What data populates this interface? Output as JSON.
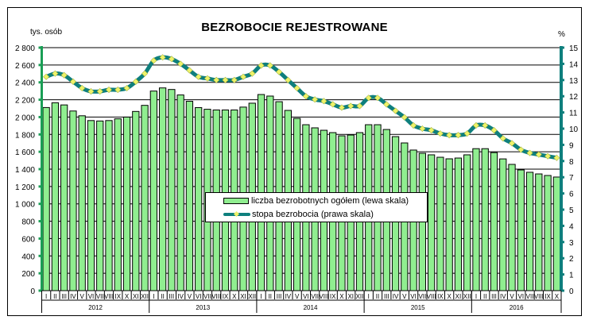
{
  "chart_data": {
    "type": "bar+line",
    "title": "BEZROBOCIE REJESTROWANE",
    "left_axis": {
      "label": "tys. osób",
      "ticks": [
        "0",
        "200",
        "400",
        "600",
        "800",
        "1 000",
        "1 200",
        "1 400",
        "1 600",
        "1 800",
        "2 000",
        "2 200",
        "2 400",
        "2 600",
        "2 800"
      ],
      "range": [
        0,
        2800
      ]
    },
    "right_axis": {
      "label": "%",
      "ticks": [
        "0",
        "1",
        "2",
        "3",
        "4",
        "5",
        "6",
        "7",
        "8",
        "9",
        "10",
        "11",
        "12",
        "13",
        "14",
        "15"
      ],
      "range": [
        0,
        15
      ]
    },
    "months": [
      "I",
      "II",
      "III",
      "IV",
      "V",
      "VI",
      "VII",
      "VIII",
      "IX",
      "X",
      "XI",
      "XII"
    ],
    "years": [
      {
        "label": "2012",
        "months": 12
      },
      {
        "label": "2013",
        "months": 12
      },
      {
        "label": "2014",
        "months": 12
      },
      {
        "label": "2015",
        "months": 12
      },
      {
        "label": "2016",
        "months": 10
      }
    ],
    "series": [
      {
        "name": "liczba bezrobotnych ogółem (lewa skala)",
        "type": "bar",
        "axis": "left",
        "color": "#90ee90",
        "values": [
          2110,
          2165,
          2140,
          2070,
          2015,
          1960,
          1955,
          1960,
          1980,
          2000,
          2065,
          2135,
          2300,
          2336,
          2318,
          2255,
          2182,
          2109,
          2090,
          2082,
          2082,
          2082,
          2115,
          2160,
          2260,
          2242,
          2177,
          2077,
          1985,
          1912,
          1876,
          1848,
          1821,
          1784,
          1793,
          1821,
          1912,
          1912,
          1857,
          1775,
          1702,
          1620,
          1583,
          1565,
          1537,
          1519,
          1528,
          1565,
          1636,
          1636,
          1591,
          1518,
          1455,
          1391,
          1364,
          1345,
          1327,
          1309
        ]
      },
      {
        "name": "stopa bezrobocia (prawa skala)",
        "type": "line",
        "axis": "right",
        "color": "#0e7f7d",
        "marker_color": "#eef26a",
        "values": [
          13.2,
          13.4,
          13.3,
          12.9,
          12.5,
          12.3,
          12.3,
          12.4,
          12.4,
          12.5,
          12.9,
          13.4,
          14.2,
          14.4,
          14.3,
          14.0,
          13.6,
          13.2,
          13.1,
          13.0,
          13.0,
          13.0,
          13.2,
          13.4,
          13.9,
          13.9,
          13.5,
          13.0,
          12.5,
          12.0,
          11.8,
          11.7,
          11.5,
          11.3,
          11.4,
          11.4,
          11.9,
          11.9,
          11.5,
          11.1,
          10.7,
          10.2,
          10.0,
          9.9,
          9.7,
          9.6,
          9.6,
          9.7,
          10.2,
          10.2,
          9.9,
          9.4,
          9.1,
          8.7,
          8.5,
          8.4,
          8.3,
          8.2
        ]
      }
    ],
    "grid": true,
    "legend_position": "center-bottom inside plot"
  },
  "legend": {
    "bar_label": "liczba bezrobotnych ogółem (lewa skala)",
    "line_label": "stopa bezrobocia (prawa skala)"
  }
}
